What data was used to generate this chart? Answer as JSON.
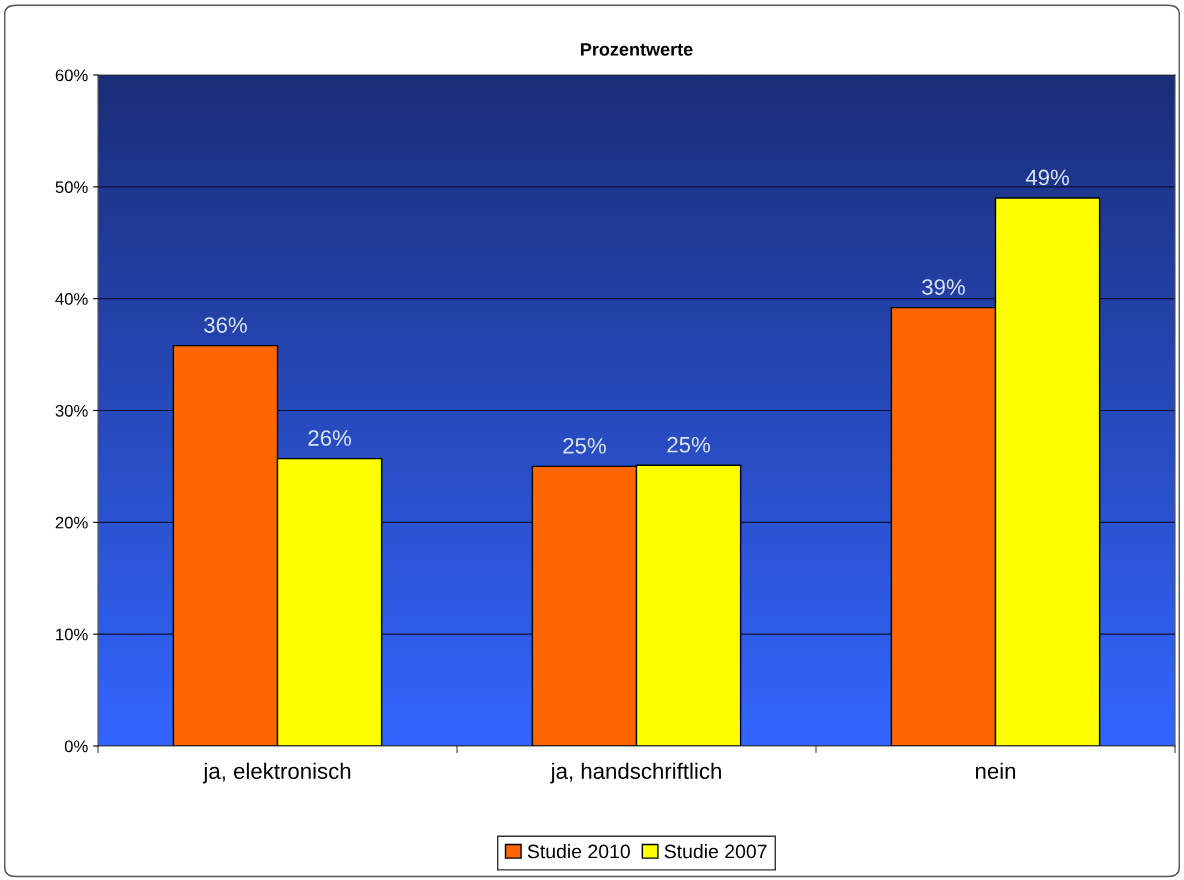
{
  "chart_data": {
    "type": "bar",
    "title": "Prozentwerte",
    "categories": [
      "ja, elektronisch",
      "ja, handschriftlich",
      "nein"
    ],
    "series": [
      {
        "name": "Studie 2010",
        "color": "#ff6600",
        "values": [
          35.8,
          25,
          39.2
        ],
        "value_labels": [
          "36%",
          "25%",
          "39%"
        ]
      },
      {
        "name": "Studie 2007",
        "color": "#ffff00",
        "values": [
          25.7,
          25.1,
          49
        ],
        "value_labels": [
          "26%",
          "25%",
          "49%"
        ]
      }
    ],
    "ylim": [
      0,
      60
    ],
    "yticks": [
      {
        "value": 0,
        "label": "0%"
      },
      {
        "value": 10,
        "label": "10%"
      },
      {
        "value": 20,
        "label": "20%"
      },
      {
        "value": 30,
        "label": "30%"
      },
      {
        "value": 40,
        "label": "40%"
      },
      {
        "value": 50,
        "label": "50%"
      },
      {
        "value": 60,
        "label": "60%"
      }
    ],
    "grid": "y",
    "legend": "bottom"
  }
}
